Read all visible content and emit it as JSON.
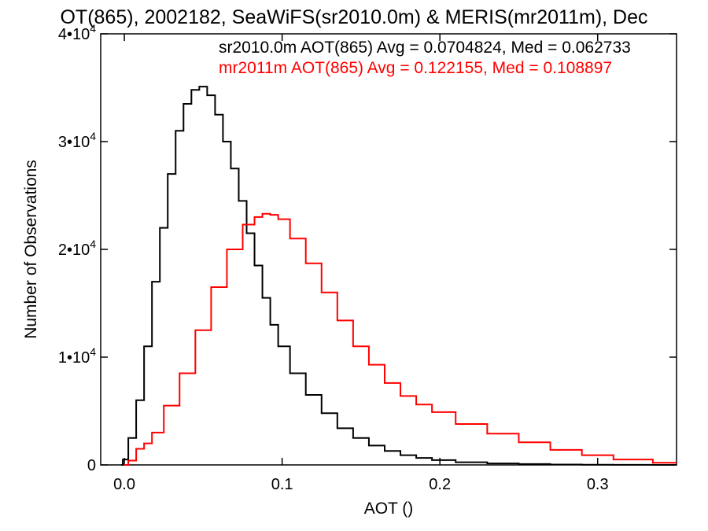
{
  "chart_data": {
    "type": "line",
    "title": "OT(865), 2002182, SeaWiFS(sr2010.0m) & MERIS(mr2011m), Dec",
    "xlabel": "AOT ()",
    "ylabel": "Number of Observations",
    "xlim": [
      -0.015,
      0.35
    ],
    "ylim": [
      0,
      40000
    ],
    "grid": false,
    "x_ticks": [
      {
        "value": 0.0,
        "label": "0.0"
      },
      {
        "value": 0.1,
        "label": "0.1"
      },
      {
        "value": 0.2,
        "label": "0.2"
      },
      {
        "value": 0.3,
        "label": "0.3"
      }
    ],
    "y_ticks": [
      {
        "value": 0,
        "mantissa": "0",
        "exponent": ""
      },
      {
        "value": 10000,
        "mantissa": "1•10",
        "exponent": "4"
      },
      {
        "value": 20000,
        "mantissa": "2•10",
        "exponent": "4"
      },
      {
        "value": 30000,
        "mantissa": "3•10",
        "exponent": "4"
      },
      {
        "value": 40000,
        "mantissa": "4•10",
        "exponent": "4"
      }
    ],
    "annotations": [
      {
        "text": "sr2010.0m AOT(865) Avg = 0.0704824, Med = 0.062733",
        "color": "#000000"
      },
      {
        "text": "mr2011m AOT(865) Avg = 0.122155, Med = 0.108897",
        "color": "#ff0000"
      }
    ],
    "series": [
      {
        "color": "#000000",
        "x": [
          -0.002,
          0.0,
          0.005,
          0.01,
          0.015,
          0.02,
          0.025,
          0.03,
          0.035,
          0.04,
          0.045,
          0.05,
          0.055,
          0.06,
          0.065,
          0.07,
          0.075,
          0.08,
          0.085,
          0.09,
          0.095,
          0.1,
          0.11,
          0.12,
          0.13,
          0.14,
          0.15,
          0.16,
          0.17,
          0.18,
          0.19,
          0.2,
          0.22,
          0.24,
          0.26,
          0.28,
          0.3,
          0.32,
          0.35
        ],
        "y": [
          0,
          500,
          2500,
          6000,
          11000,
          17000,
          22000,
          27000,
          31000,
          33500,
          34800,
          35100,
          34300,
          32500,
          30000,
          27500,
          24500,
          21500,
          18500,
          15500,
          13000,
          11000,
          8500,
          6500,
          4800,
          3400,
          2500,
          1800,
          1300,
          900,
          650,
          450,
          250,
          140,
          80,
          40,
          20,
          10,
          0
        ]
      },
      {
        "color": "#ff0000",
        "x": [
          0.0,
          0.005,
          0.01,
          0.015,
          0.02,
          0.03,
          0.04,
          0.05,
          0.06,
          0.07,
          0.08,
          0.085,
          0.09,
          0.095,
          0.1,
          0.11,
          0.12,
          0.13,
          0.14,
          0.15,
          0.16,
          0.17,
          0.18,
          0.19,
          0.2,
          0.22,
          0.24,
          0.26,
          0.28,
          0.3,
          0.32,
          0.35
        ],
        "y": [
          0,
          400,
          1500,
          2000,
          3000,
          5500,
          8500,
          12500,
          16500,
          20000,
          22300,
          23000,
          23300,
          23200,
          22800,
          21000,
          18700,
          16000,
          13400,
          11000,
          9300,
          7600,
          6400,
          5600,
          4900,
          3800,
          2900,
          2100,
          1400,
          900,
          500,
          200
        ]
      }
    ]
  }
}
